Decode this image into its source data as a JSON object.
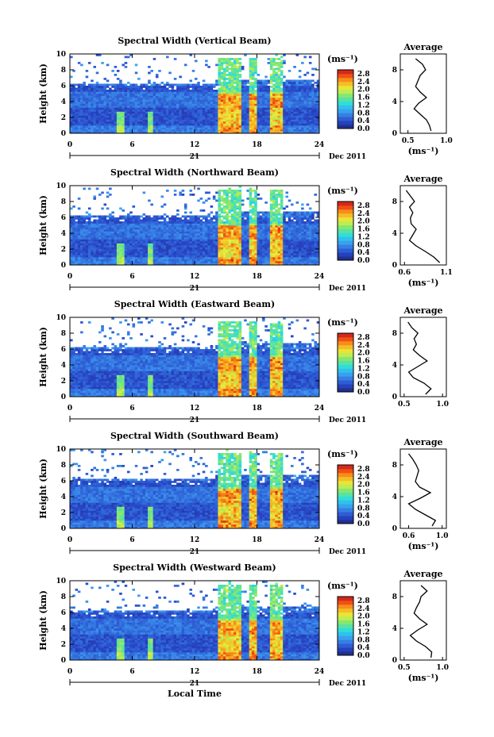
{
  "chart_data": [
    {
      "type": "heatmap",
      "title": "Spectral Width (Vertical Beam)",
      "ylabel": "Height (km)",
      "x_ticks": [
        "0",
        "6",
        "12",
        "18",
        "24"
      ],
      "y_ticks": [
        "0",
        "2",
        "4",
        "6",
        "8",
        "10"
      ],
      "date_day": "21",
      "date_label": "Dec 2011",
      "colorbar": {
        "unit": "(ms⁻¹)",
        "ticks": [
          "0.0",
          "0.4",
          "0.8",
          "1.2",
          "1.6",
          "2.0",
          "2.4",
          "2.8"
        ],
        "range": [
          0.0,
          3.0
        ]
      },
      "profile": {
        "title": "Average",
        "xlabel": "(ms⁻¹)",
        "x_ticks": [
          "0.5",
          "1.0"
        ],
        "xlim": [
          0.4,
          1.0
        ],
        "heights": [
          0.3,
          1.0,
          1.7,
          2.4,
          3.1,
          3.8,
          4.5,
          5.2,
          5.9,
          6.6,
          7.3,
          8.0,
          8.7,
          9.4
        ],
        "values": [
          0.8,
          0.78,
          0.74,
          0.66,
          0.58,
          0.64,
          0.74,
          0.66,
          0.6,
          0.63,
          0.66,
          0.73,
          0.69,
          0.6
        ]
      }
    },
    {
      "type": "heatmap",
      "title": "Spectral Width (Northward Beam)",
      "ylabel": "Height (km)",
      "x_ticks": [
        "0",
        "6",
        "12",
        "18",
        "24"
      ],
      "y_ticks": [
        "0",
        "2",
        "4",
        "6",
        "8",
        "10"
      ],
      "date_day": "21",
      "date_label": "Dec 2011",
      "colorbar": {
        "unit": "(ms⁻¹)",
        "ticks": [
          "0.0",
          "0.4",
          "0.8",
          "1.2",
          "1.6",
          "2.0",
          "2.4",
          "2.8"
        ],
        "range": [
          0.0,
          3.0
        ]
      },
      "profile": {
        "title": "Average",
        "xlabel": "(ms⁻¹)",
        "x_ticks": [
          "0.6",
          "1.1"
        ],
        "xlim": [
          0.55,
          1.1
        ],
        "heights": [
          0.3,
          1.0,
          1.7,
          2.4,
          3.1,
          3.8,
          4.5,
          5.2,
          5.9,
          6.6,
          7.3,
          8.0,
          8.7,
          9.4
        ],
        "values": [
          1.02,
          0.95,
          0.85,
          0.74,
          0.66,
          0.7,
          0.74,
          0.68,
          0.67,
          0.7,
          0.66,
          0.72,
          0.67,
          0.62
        ]
      }
    },
    {
      "type": "heatmap",
      "title": "Spectral Width (Eastward Beam)",
      "ylabel": "Height (km)",
      "x_ticks": [
        "0",
        "6",
        "12",
        "18",
        "24"
      ],
      "y_ticks": [
        "0",
        "2",
        "4",
        "6",
        "8",
        "10"
      ],
      "date_day": "21",
      "date_label": "Dec 2011",
      "colorbar": {
        "unit": "(ms⁻¹)",
        "ticks": [
          "0.0",
          "0.4",
          "0.8",
          "1.2",
          "1.6",
          "2.0",
          "2.4",
          "2.8"
        ],
        "range": [
          0.0,
          3.0
        ]
      },
      "profile": {
        "title": "Average",
        "xlabel": "",
        "x_ticks": [
          "0.5",
          "1.0"
        ],
        "xlim": [
          0.45,
          1.05
        ],
        "heights": [
          0.3,
          1.0,
          1.7,
          2.4,
          3.1,
          3.8,
          4.5,
          5.2,
          5.9,
          6.6,
          7.3,
          8.0,
          8.7,
          9.4
        ],
        "values": [
          0.78,
          0.85,
          0.76,
          0.62,
          0.56,
          0.68,
          0.8,
          0.7,
          0.62,
          0.66,
          0.63,
          0.68,
          0.6,
          0.55
        ]
      }
    },
    {
      "type": "heatmap",
      "title": "Spectral Width (Southward Beam)",
      "ylabel": "Height (km)",
      "x_ticks": [
        "0",
        "6",
        "12",
        "18",
        "24"
      ],
      "y_ticks": [
        "0",
        "2",
        "4",
        "6",
        "8",
        "10"
      ],
      "date_day": "21",
      "date_label": "Dec 2011",
      "colorbar": {
        "unit": "(ms⁻¹)",
        "ticks": [
          "0.0",
          "0.4",
          "0.8",
          "1.2",
          "1.6",
          "2.0",
          "2.4",
          "2.8"
        ],
        "range": [
          0.0,
          3.0
        ]
      },
      "profile": {
        "title": "Average",
        "xlabel": "(ms⁻¹)",
        "x_ticks": [
          "0.6",
          "1.0"
        ],
        "xlim": [
          0.5,
          1.05
        ],
        "heights": [
          0.3,
          1.0,
          1.7,
          2.4,
          3.1,
          3.8,
          4.5,
          5.2,
          5.9,
          6.6,
          7.3,
          8.0,
          8.7,
          9.4
        ],
        "values": [
          0.88,
          0.92,
          0.8,
          0.68,
          0.6,
          0.74,
          0.86,
          0.73,
          0.68,
          0.7,
          0.72,
          0.69,
          0.65,
          0.6
        ]
      }
    },
    {
      "type": "heatmap",
      "title": "Spectral Width (Westward Beam)",
      "ylabel": "Height (km)",
      "xlabel": "Local Time",
      "x_ticks": [
        "0",
        "6",
        "12",
        "18",
        "24"
      ],
      "y_ticks": [
        "0",
        "2",
        "4",
        "6",
        "8",
        "10"
      ],
      "date_day": "21",
      "date_label": "Dec 2011",
      "colorbar": {
        "unit": "(ms⁻¹)",
        "ticks": [
          "0.0",
          "0.4",
          "0.8",
          "1.2",
          "1.6",
          "2.0",
          "2.4",
          "2.8"
        ],
        "range": [
          0.0,
          3.0
        ]
      },
      "profile": {
        "title": "Average",
        "xlabel": "(ms⁻¹)",
        "x_ticks": [
          "0.5",
          "1.0"
        ],
        "xlim": [
          0.45,
          1.05
        ],
        "heights": [
          0.3,
          1.0,
          1.7,
          2.4,
          3.1,
          3.8,
          4.5,
          5.2,
          5.9,
          6.6,
          7.3,
          8.0,
          8.7,
          9.4
        ],
        "values": [
          0.85,
          0.86,
          0.78,
          0.66,
          0.58,
          0.68,
          0.8,
          0.7,
          0.63,
          0.66,
          0.7,
          0.72,
          0.8,
          0.72
        ]
      }
    }
  ]
}
